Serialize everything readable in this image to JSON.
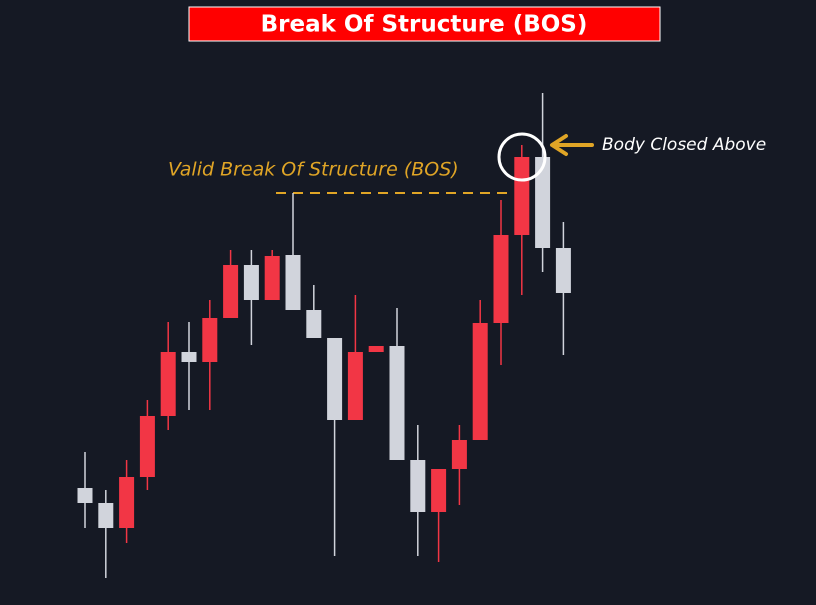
{
  "chart_data": {
    "type": "candlestick",
    "title": "Break Of Structure (BOS)",
    "annotations": [
      "Valid Break Of Structure (BOS)",
      "Body Closed Above"
    ],
    "open": [
      112,
      97,
      72,
      123,
      184,
      248,
      238,
      282,
      335,
      300,
      345,
      290,
      262,
      180,
      248,
      254,
      140,
      88,
      131,
      160,
      277,
      365,
      443,
      352
    ],
    "high": [
      148,
      110,
      140,
      200,
      278,
      278,
      300,
      350,
      350,
      350,
      407,
      315,
      262,
      305,
      254,
      292,
      175,
      131,
      175,
      300,
      400,
      455,
      507,
      378
    ],
    "low": [
      72,
      22,
      57,
      110,
      170,
      190,
      190,
      282,
      255,
      300,
      290,
      262,
      44,
      180,
      248,
      140,
      44,
      38,
      95,
      160,
      235,
      305,
      328,
      245
    ],
    "close": [
      97,
      72,
      123,
      184,
      248,
      238,
      282,
      335,
      300,
      344,
      290,
      262,
      180,
      248,
      254,
      140,
      88,
      131,
      160,
      277,
      365,
      443,
      352,
      307
    ],
    "up_color": "#f23645",
    "down_color": "#d1d4dc",
    "ylim": [
      0,
      600
    ]
  }
}
